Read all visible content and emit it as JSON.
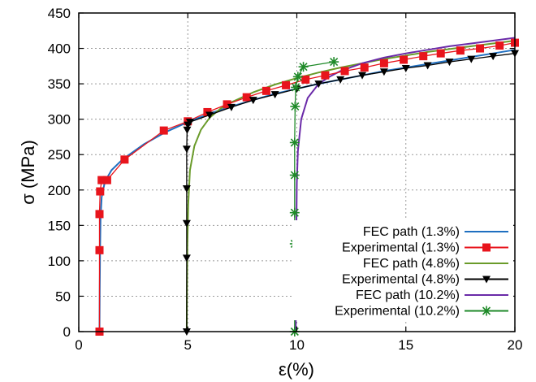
{
  "chart_data": {
    "type": "line",
    "title": "",
    "xlabel": "ε(%)",
    "ylabel": "σ (MPa)",
    "xlim": [
      0,
      20
    ],
    "ylim": [
      0,
      450
    ],
    "xticks": [
      0,
      5,
      10,
      15,
      20
    ],
    "yticks": [
      0,
      50,
      100,
      150,
      200,
      250,
      300,
      350,
      400,
      450
    ],
    "grid": true,
    "legend_position": "bottom-right",
    "series": [
      {
        "name": "FEC path (1.3%)",
        "color": "#1f6fc0",
        "marker": "none",
        "x": [
          0.95,
          0.96,
          0.98,
          1.0,
          1.05,
          1.2,
          1.5,
          2.0,
          3.0,
          4.0,
          5.0,
          6.0,
          7.0,
          8.0,
          9.0,
          10.0,
          11.0,
          12.0,
          13.0,
          14.0,
          15.0,
          16.0,
          17.0,
          18.0,
          19.0,
          20.0
        ],
        "y": [
          0,
          60,
          120,
          160,
          190,
          212,
          228,
          243,
          265,
          282,
          296,
          308,
          318,
          327,
          336,
          343,
          350,
          356,
          362,
          368,
          373,
          378,
          383,
          388,
          393,
          398
        ]
      },
      {
        "name": "Experimental (1.3%)",
        "color": "#e8141c",
        "marker": "square",
        "x": [
          0.95,
          0.95,
          0.95,
          0.98,
          1.05,
          1.3,
          2.1,
          3.9,
          5.0,
          5.9,
          6.8,
          7.7,
          8.6,
          9.5,
          10.4,
          11.3,
          12.2,
          13.1,
          14.0,
          14.9,
          15.8,
          16.6,
          17.5,
          18.4,
          19.3,
          20.0
        ],
        "y": [
          0,
          115,
          166,
          198,
          214,
          214,
          243,
          284,
          297,
          310,
          321,
          331,
          340,
          348,
          356,
          362,
          368,
          373,
          379,
          384,
          389,
          393,
          397,
          400,
          404,
          408
        ]
      },
      {
        "name": "FEC path (4.8%)",
        "color": "#6a9b2a",
        "marker": "none",
        "x": [
          4.95,
          4.96,
          4.98,
          5.02,
          5.1,
          5.3,
          5.6,
          6.0,
          6.5,
          7.0,
          8.0,
          9.0,
          10.0,
          11.0,
          12.0,
          13.0,
          14.0,
          15.0,
          16.0,
          17.0,
          18.0,
          19.0,
          20.0
        ],
        "y": [
          0,
          60,
          120,
          180,
          228,
          262,
          285,
          302,
          315,
          324,
          338,
          349,
          358,
          366,
          373,
          379,
          385,
          390,
          395,
          399,
          403,
          407,
          411
        ]
      },
      {
        "name": "Experimental (4.8%)",
        "color": "#000000",
        "marker": "triangle-down",
        "x": [
          4.95,
          4.95,
          4.95,
          4.95,
          4.95,
          4.97,
          5.0,
          5.1,
          6.0,
          7.0,
          8.0,
          9.0,
          10.0,
          11.0,
          12.0,
          13.0,
          14.0,
          15.0,
          16.0,
          17.0,
          18.0,
          19.0,
          20.0
        ],
        "y": [
          0,
          104,
          153,
          202,
          258,
          285,
          292,
          296,
          306,
          317,
          327,
          335,
          343,
          350,
          356,
          362,
          367,
          372,
          376,
          381,
          385,
          389,
          393
        ]
      },
      {
        "name": "FEC path (10.2%)",
        "color": "#6a2aa8",
        "marker": "none",
        "x": [
          9.95,
          9.96,
          9.98,
          10.0,
          10.05,
          10.2,
          10.5,
          11.0,
          11.5,
          12.0,
          13.0,
          14.0,
          15.0,
          16.0,
          17.0,
          18.0,
          19.0,
          20.0
        ],
        "y": [
          0,
          80,
          150,
          210,
          255,
          300,
          330,
          350,
          360,
          368,
          379,
          387,
          393,
          398,
          403,
          407,
          411,
          415
        ]
      },
      {
        "name": "Experimental (10.2%)",
        "color": "#1e8a28",
        "marker": "star",
        "x": [
          9.9,
          9.9,
          9.9,
          9.9,
          9.9,
          9.92,
          9.95,
          10.05,
          10.3,
          11.7
        ],
        "y": [
          0,
          124,
          168,
          221,
          267,
          318,
          345,
          360,
          374,
          381
        ]
      }
    ]
  }
}
